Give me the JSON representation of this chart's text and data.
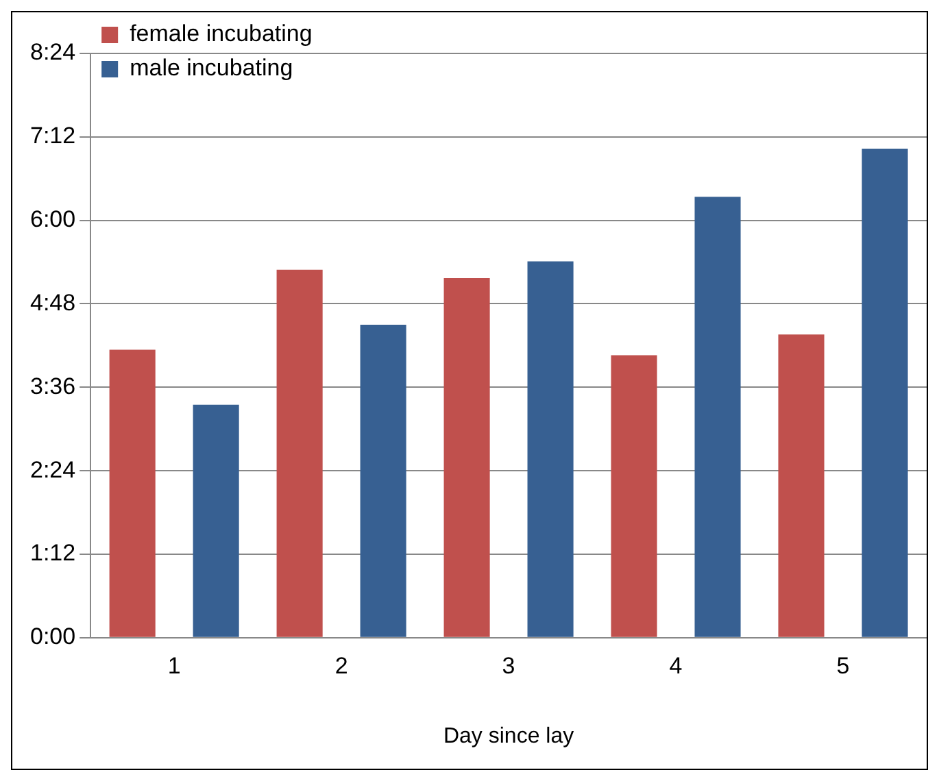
{
  "chart_data": {
    "type": "bar",
    "xlabel": "Day since lay",
    "categories": [
      "1",
      "2",
      "3",
      "4",
      "5"
    ],
    "series": [
      {
        "name": "female incubating",
        "color": "#c0504d",
        "values": [
          4.14,
          5.29,
          5.17,
          4.06,
          4.36
        ]
      },
      {
        "name": "male incubating",
        "color": "#376092",
        "values": [
          3.35,
          4.5,
          5.41,
          6.34,
          7.03
        ]
      }
    ],
    "ylim": [
      0,
      8.4
    ],
    "yticks": [
      {
        "value": 0,
        "label": "0:00"
      },
      {
        "value": 1.2,
        "label": "1:12"
      },
      {
        "value": 2.4,
        "label": "2:24"
      },
      {
        "value": 3.6,
        "label": "3:36"
      },
      {
        "value": 4.8,
        "label": "4:48"
      },
      {
        "value": 6,
        "label": "6:00"
      },
      {
        "value": 7.2,
        "label": "7:12"
      },
      {
        "value": 8.4,
        "label": "8:24"
      }
    ],
    "grid": "y",
    "legend": "top left"
  }
}
